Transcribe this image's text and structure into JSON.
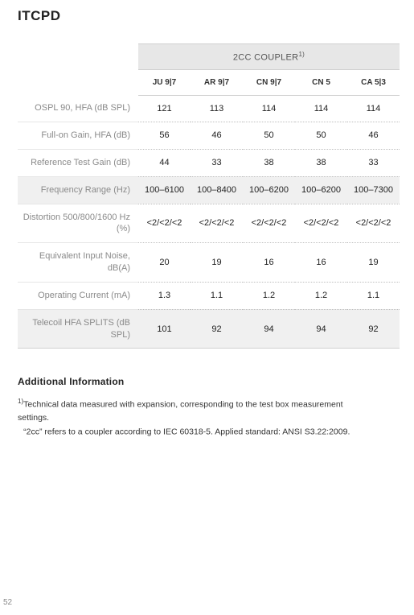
{
  "title": "ITCPD",
  "coupler_header": "2CC COUPLER",
  "coupler_header_sup": "1)",
  "columns": [
    "JU 9|7",
    "AR 9|7",
    "CN 9|7",
    "CN 5",
    "CA 5|3"
  ],
  "rows": [
    {
      "label": "OSPL 90, HFA (dB SPL)",
      "vals": [
        "121",
        "113",
        "114",
        "114",
        "114"
      ],
      "shade": false
    },
    {
      "label": "Full-on Gain, HFA (dB)",
      "vals": [
        "56",
        "46",
        "50",
        "50",
        "46"
      ],
      "shade": false
    },
    {
      "label": "Reference Test Gain (dB)",
      "vals": [
        "44",
        "33",
        "38",
        "38",
        "33"
      ],
      "shade": false
    },
    {
      "label": "Frequency Range (Hz)",
      "vals": [
        "100–6100",
        "100–8400",
        "100–6200",
        "100–6200",
        "100–7300"
      ],
      "shade": true
    },
    {
      "label": "Distortion 500/800/1600 Hz (%)",
      "vals": [
        "<2/<2/<2",
        "<2/<2/<2",
        "<2/<2/<2",
        "<2/<2/<2",
        "<2/<2/<2"
      ],
      "shade": false
    },
    {
      "label": "Equivalent Input Noise, dB(A)",
      "vals": [
        "20",
        "19",
        "16",
        "16",
        "19"
      ],
      "shade": false
    },
    {
      "label": "Operating Current (mA)",
      "vals": [
        "1.3",
        "1.1",
        "1.2",
        "1.2",
        "1.1"
      ],
      "shade": false
    },
    {
      "label": "Telecoil HFA SPLITS (dB SPL)",
      "vals": [
        "101",
        "92",
        "94",
        "94",
        "92"
      ],
      "shade": true,
      "lastshade": true
    }
  ],
  "additional_heading": "Additional Information",
  "note_sup": "1)",
  "note_line1": "Technical data measured with expansion, corresponding to the test box measurement settings.",
  "note_line2": "“2cc” refers to a coupler according to IEC 60318-5. Applied standard: ANSI S3.22:2009.",
  "page_number": "52"
}
